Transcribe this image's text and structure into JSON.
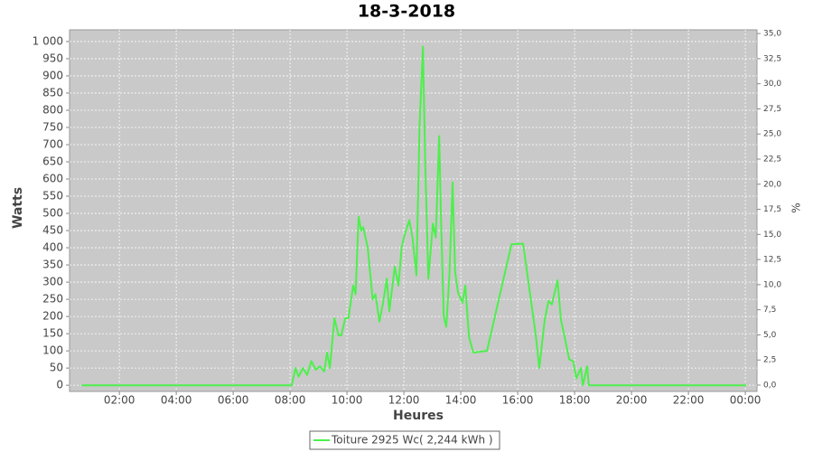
{
  "chart_data": {
    "type": "line",
    "title": "18-3-2018",
    "x_label": "Heures",
    "y_label": "Watts",
    "y2_label": "%",
    "xlim": [
      0.25,
      24.41
    ],
    "xticks": [
      {
        "value": 2,
        "label": "02:00"
      },
      {
        "value": 4,
        "label": "04:00"
      },
      {
        "value": 6,
        "label": "06:00"
      },
      {
        "value": 8,
        "label": "08:00"
      },
      {
        "value": 10,
        "label": "10:00"
      },
      {
        "value": 12,
        "label": "12:00"
      },
      {
        "value": 14,
        "label": "14:00"
      },
      {
        "value": 16,
        "label": "16:00"
      },
      {
        "value": 18,
        "label": "18:00"
      },
      {
        "value": 20,
        "label": "20:00"
      },
      {
        "value": 22,
        "label": "22:00"
      },
      {
        "value": 24,
        "label": "00:00"
      }
    ],
    "ylim": [
      -18,
      1034
    ],
    "yticks": [
      0,
      50,
      100,
      150,
      200,
      250,
      300,
      350,
      400,
      450,
      500,
      550,
      600,
      650,
      700,
      750,
      800,
      850,
      900,
      950,
      {
        "value": 1000,
        "label": "1 000"
      }
    ],
    "y2lim": [
      -0.63,
      35.37
    ],
    "y2ticks": [
      {
        "value": 0,
        "label": "0,0"
      },
      {
        "value": 2.5,
        "label": "2,5"
      },
      {
        "value": 5,
        "label": "5,0"
      },
      {
        "value": 7.5,
        "label": "7,5"
      },
      {
        "value": 10,
        "label": "10,0"
      },
      {
        "value": 12.5,
        "label": "12,5"
      },
      {
        "value": 15,
        "label": "15,0"
      },
      {
        "value": 17.5,
        "label": "17,5"
      },
      {
        "value": 20,
        "label": "20,0"
      },
      {
        "value": 22.5,
        "label": "22,5"
      },
      {
        "value": 25,
        "label": "25,0"
      },
      {
        "value": 27.5,
        "label": "27,5"
      },
      {
        "value": 30,
        "label": "30,0"
      },
      {
        "value": 32.5,
        "label": "32,5"
      },
      {
        "value": 35,
        "label": "35,0"
      }
    ],
    "grid": true,
    "legend": "bottom",
    "x": [
      0.67,
      8.0,
      8.06,
      8.19,
      8.3,
      8.45,
      8.6,
      8.75,
      8.9,
      9.05,
      9.2,
      9.3,
      9.4,
      9.56,
      9.7,
      9.8,
      9.94,
      10.05,
      10.22,
      10.3,
      10.41,
      10.5,
      10.57,
      10.73,
      10.9,
      11.0,
      11.14,
      11.27,
      11.4,
      11.49,
      11.68,
      11.81,
      11.92,
      12.0,
      12.19,
      12.3,
      12.44,
      12.55,
      12.67,
      12.75,
      12.86,
      13.02,
      13.12,
      13.24,
      13.3,
      13.4,
      13.49,
      13.6,
      13.71,
      13.8,
      13.9,
      14.06,
      14.16,
      14.29,
      14.44,
      14.92,
      15.78,
      16.19,
      16.63,
      16.76,
      16.95,
      17.08,
      17.2,
      17.4,
      17.52,
      17.65,
      17.81,
      17.95,
      18.06,
      18.22,
      18.29,
      18.44,
      18.5,
      24.03
    ],
    "series": [
      {
        "name": "Toiture 2925 Wc( 2,244 kWh )",
        "color": "#4cf04c",
        "values": [
          0,
          0,
          0,
          50,
          25,
          50,
          30,
          70,
          45,
          55,
          40,
          95,
          50,
          195,
          145,
          145,
          195,
          195,
          290,
          265,
          490,
          450,
          460,
          400,
          250,
          265,
          185,
          240,
          310,
          215,
          345,
          290,
          400,
          430,
          480,
          430,
          320,
          750,
          985,
          650,
          310,
          470,
          430,
          725,
          500,
          200,
          170,
          320,
          590,
          330,
          270,
          240,
          290,
          140,
          95,
          100,
          410,
          412,
          150,
          50,
          190,
          245,
          235,
          305,
          190,
          140,
          75,
          70,
          20,
          50,
          0,
          55,
          0,
          0
        ]
      }
    ]
  }
}
